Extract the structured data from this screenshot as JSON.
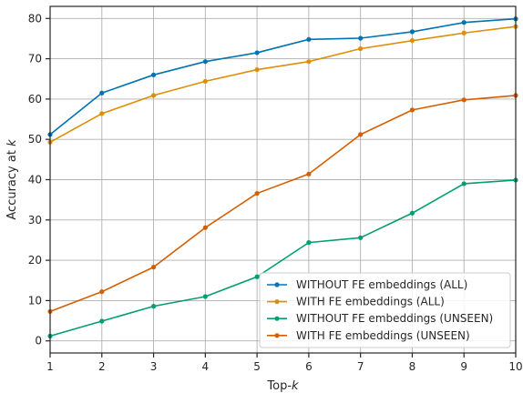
{
  "chart_data": {
    "type": "line",
    "xlabel": "Top-",
    "xlabel_italic": "k",
    "ylabel": "Accuracy at ",
    "ylabel_italic": "k",
    "xlim": [
      1,
      10
    ],
    "ylim": [
      -3,
      83
    ],
    "xticks": [
      1,
      2,
      3,
      4,
      5,
      6,
      7,
      8,
      9,
      10
    ],
    "yticks": [
      0,
      10,
      20,
      30,
      40,
      50,
      60,
      70,
      80
    ],
    "grid": true,
    "legend_position": "bottom-right",
    "x": [
      1,
      2,
      3,
      4,
      5,
      6,
      7,
      8,
      9,
      10
    ],
    "series": [
      {
        "name": "WITHOUT FE embeddings (ALL)",
        "color": "#0173b2",
        "values": [
          51.2,
          61.5,
          66.0,
          69.3,
          71.5,
          74.8,
          75.1,
          76.7,
          79.0,
          79.9
        ]
      },
      {
        "name": "WITH FE embeddings (ALL)",
        "color": "#de8f05",
        "values": [
          49.3,
          56.4,
          60.9,
          64.4,
          67.3,
          69.3,
          72.5,
          74.5,
          76.4,
          78.0
        ]
      },
      {
        "name": "WITHOUT FE embeddings (UNSEEN)",
        "color": "#029e73",
        "values": [
          1.2,
          4.9,
          8.6,
          11.0,
          15.9,
          24.4,
          25.6,
          31.7,
          39.0,
          39.9
        ]
      },
      {
        "name": "WITH FE embeddings (UNSEEN)",
        "color": "#d55e00",
        "values": [
          7.3,
          12.2,
          18.3,
          28.1,
          36.6,
          41.4,
          51.2,
          57.3,
          59.8,
          60.9
        ]
      }
    ]
  }
}
